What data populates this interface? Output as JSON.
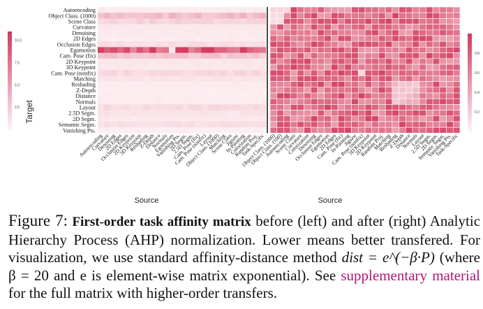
{
  "colors": {
    "cell_low": "#fdf1f4",
    "cell_high": "#d43b5e",
    "grid_line": "#ffffff",
    "divider": "#000000",
    "link": "#b5157a"
  },
  "chart_data": [
    {
      "type": "heatmap",
      "panel": "left",
      "xlabel": "Source",
      "ylabel": "Target",
      "y_categories": [
        "Autoencoding",
        "Object Class. (1000)",
        "Scene Class",
        "Curvature",
        "Denoising",
        "2D Edges",
        "Occlusion Edges",
        "Egomotion",
        "Cam. Pose (fix)",
        "2D Keypoint",
        "3D Keypoint",
        "Cam. Pose (nonfix)",
        "Matching",
        "Reshading",
        "Z-Depth",
        "Distance",
        "Normals",
        "Layout",
        "2.5D Segm.",
        "2D Segm.",
        "Semantic Segm.",
        "Vanishing Pts."
      ],
      "x_categories": [
        "Autoencoding",
        "Curvature",
        "Denoising",
        "2D Edges",
        "Occlusion Edges",
        "2D Keypoint",
        "3D Keypoint",
        "Reshading",
        "Z-Depth",
        "Distance",
        "Normals",
        "Egomotion",
        "Vanishing Pts.",
        "2D Segm.",
        "2.5D Segm.",
        "Cam. Pose (fix)",
        "Cam. Pose (nonfix)",
        "Layout",
        "Object Class. (1000)",
        "Matching",
        "Scene Class",
        "Jigsaw",
        "In-Painting",
        "Colorization",
        "Random Proj.",
        "Task-Specific"
      ],
      "colorbar": {
        "min": 0,
        "max": 11,
        "ticks": [
          "2.5",
          "5.0",
          "7.5",
          "10.0"
        ]
      },
      "row_levels": [
        0.4,
        3.5,
        2.0,
        0.6,
        0.5,
        0.4,
        1.2,
        9.8,
        2.8,
        0.7,
        0.6,
        1.6,
        0.8,
        0.4,
        0.3,
        0.3,
        0.4,
        1.5,
        0.9,
        0.6,
        1.2,
        0.2
      ]
    },
    {
      "type": "heatmap",
      "panel": "right",
      "xlabel": "Source",
      "y_categories": [
        "Autoencoding",
        "Object Class. (1000)",
        "Scene Class",
        "Curvature",
        "Denoising",
        "2D Edges",
        "Occlusion Edges",
        "Egomotion",
        "Cam. Pose (fix)",
        "2D Keypoint",
        "3D Keypoint",
        "Cam. Pose (nonfix)",
        "Matching",
        "Reshading",
        "Z-Depth",
        "Distance",
        "Normals",
        "Layout",
        "2.5D Segm.",
        "2D Segm.",
        "Semantic Segm.",
        "Vanishing Pts."
      ],
      "x_categories": [
        "Object Class. (1000)",
        "Object Class. (100)",
        "Autoencoding",
        "Scene Class",
        "Curvature",
        "Colorization",
        "Denoising",
        "Occlusion Edges",
        "Egomotion",
        "2D Edges",
        "Cam. Pose (fix)",
        "In-Painting",
        "Jigsaw",
        "Cam. Pose (nonfix)",
        "3D Keypoint",
        "2D Keypoint",
        "Random Proj.",
        "Matching",
        "Reshading",
        "Z-Depth",
        "Distance",
        "Normals",
        "Layout",
        "2.5D Segm.",
        "2D Segm.",
        "Semantic Segm.",
        "Vanishing Pts.",
        "Task-Specific"
      ],
      "colorbar": {
        "min": 0,
        "max": 1,
        "ticks": [
          "0.2",
          "0.4",
          "0.6",
          "0.8"
        ]
      }
    }
  ],
  "caption": {
    "figure_number": "Figure 7:",
    "bold_title": "First-order task affinity matrix",
    "text_1": " before (left) and after (right) Analytic Hierarchy Process (AHP) normalization.  Lower means better transfered.  For visualization, we use standard affinity-distance method ",
    "math": "dist = e^(−β·P)",
    "text_2": " (where β = 20 and e is element-wise matrix exponential). See ",
    "link": "supplementary material",
    "text_3": " for the full matrix with higher-order transfers."
  }
}
